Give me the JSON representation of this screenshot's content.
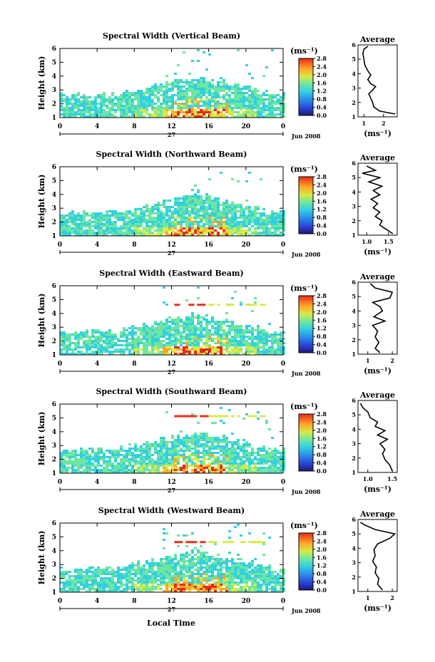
{
  "page": {
    "x_axis_label": "Local Time",
    "date_label": "Jun 2008",
    "day_label": "27"
  },
  "chart_data": [
    {
      "type": "heatmap",
      "title": "Spectral Width (Vertical Beam)",
      "ylabel": "Height (km)",
      "xlabel": "Local Time",
      "x_ticks": [
        "0",
        "4",
        "8",
        "12",
        "16",
        "20",
        "0"
      ],
      "y_ticks": [
        "1",
        "2",
        "3",
        "4",
        "5",
        "6"
      ],
      "xlim": [
        0,
        24
      ],
      "ylim": [
        1,
        6
      ],
      "colorbar_unit": "(ms⁻¹)",
      "colorbar_ticks": [
        "0.0",
        "0.4",
        "0.8",
        "1.2",
        "1.6",
        "2.0",
        "2.4",
        "2.8"
      ],
      "profile": {
        "title": "Average",
        "xlabel": "(ms⁻¹)",
        "x_ticks": [
          "1",
          "2"
        ],
        "xlim": [
          0.7,
          2.7
        ],
        "points": [
          [
            2.6,
            1.2
          ],
          [
            1.8,
            1.4
          ],
          [
            1.5,
            1.7
          ],
          [
            1.45,
            2.0
          ],
          [
            1.35,
            2.3
          ],
          [
            1.25,
            2.6
          ],
          [
            1.4,
            2.8
          ],
          [
            1.6,
            3.1
          ],
          [
            1.35,
            3.3
          ],
          [
            1.2,
            3.6
          ],
          [
            1.35,
            3.9
          ],
          [
            1.2,
            4.2
          ],
          [
            1.05,
            4.6
          ],
          [
            1.0,
            5.0
          ],
          [
            0.95,
            5.4
          ],
          [
            1.0,
            5.7
          ],
          [
            1.2,
            5.9
          ]
        ]
      }
    },
    {
      "type": "heatmap",
      "title": "Spectral Width (Northward Beam)",
      "ylabel": "Height (km)",
      "xlabel": "Local Time",
      "x_ticks": [
        "0",
        "4",
        "8",
        "12",
        "16",
        "20",
        "0"
      ],
      "y_ticks": [
        "1",
        "2",
        "3",
        "4",
        "5",
        "6"
      ],
      "xlim": [
        0,
        24
      ],
      "ylim": [
        1,
        6
      ],
      "colorbar_unit": "(ms⁻¹)",
      "colorbar_ticks": [
        "0.0",
        "0.4",
        "0.8",
        "1.2",
        "1.6",
        "2.0",
        "2.4",
        "2.8"
      ],
      "profile": {
        "title": "Average",
        "xlabel": "(ms⁻¹)",
        "x_ticks": [
          "1.0",
          "1.5"
        ],
        "xlim": [
          0.8,
          1.7
        ],
        "points": [
          [
            1.6,
            1.1
          ],
          [
            1.45,
            1.4
          ],
          [
            1.3,
            1.7
          ],
          [
            1.35,
            2.0
          ],
          [
            1.2,
            2.3
          ],
          [
            1.3,
            2.6
          ],
          [
            1.15,
            2.9
          ],
          [
            1.25,
            3.2
          ],
          [
            1.1,
            3.5
          ],
          [
            1.3,
            3.8
          ],
          [
            1.15,
            4.1
          ],
          [
            1.35,
            4.4
          ],
          [
            1.05,
            4.7
          ],
          [
            1.3,
            5.0
          ],
          [
            0.9,
            5.3
          ],
          [
            1.2,
            5.5
          ],
          [
            1.0,
            5.8
          ]
        ]
      }
    },
    {
      "type": "heatmap",
      "title": "Spectral Width (Eastward Beam)",
      "ylabel": "Height (km)",
      "xlabel": "Local Time",
      "x_ticks": [
        "0",
        "4",
        "8",
        "12",
        "16",
        "20",
        "0"
      ],
      "y_ticks": [
        "1",
        "2",
        "3",
        "4",
        "5",
        "6"
      ],
      "xlim": [
        0,
        24
      ],
      "ylim": [
        1,
        6
      ],
      "colorbar_unit": "(ms⁻¹)",
      "colorbar_ticks": [
        "0.0",
        "0.4",
        "0.8",
        "1.2",
        "1.6",
        "2.0",
        "2.4",
        "2.8"
      ],
      "profile": {
        "title": "Average",
        "xlabel": "(ms⁻¹)",
        "x_ticks": [
          "1",
          "2"
        ],
        "xlim": [
          0.6,
          2.2
        ],
        "points": [
          [
            1.5,
            1.1
          ],
          [
            1.3,
            1.4
          ],
          [
            1.45,
            1.8
          ],
          [
            1.3,
            2.2
          ],
          [
            1.4,
            2.6
          ],
          [
            1.2,
            3.0
          ],
          [
            1.7,
            3.3
          ],
          [
            1.25,
            3.6
          ],
          [
            1.6,
            4.0
          ],
          [
            1.5,
            4.3
          ],
          [
            1.2,
            4.6
          ],
          [
            1.9,
            4.9
          ],
          [
            2.0,
            5.3
          ],
          [
            1.3,
            5.6
          ],
          [
            1.1,
            5.9
          ]
        ]
      }
    },
    {
      "type": "heatmap",
      "title": "Spectral Width (Southward Beam)",
      "ylabel": "Height (km)",
      "xlabel": "Local Time",
      "x_ticks": [
        "0",
        "4",
        "8",
        "12",
        "16",
        "20",
        "0"
      ],
      "y_ticks": [
        "1",
        "2",
        "3",
        "4",
        "5",
        "6"
      ],
      "xlim": [
        0,
        24
      ],
      "ylim": [
        1,
        6
      ],
      "colorbar_unit": "(ms⁻¹)",
      "colorbar_ticks": [
        "0.0",
        "0.4",
        "0.8",
        "1.2",
        "1.6",
        "2.0",
        "2.4",
        "2.8"
      ],
      "profile": {
        "title": "Average",
        "xlabel": "(ms⁻¹)",
        "x_ticks": [
          "1.0",
          "1.5"
        ],
        "xlim": [
          0.8,
          1.6
        ],
        "points": [
          [
            1.5,
            1.1
          ],
          [
            1.45,
            1.5
          ],
          [
            1.35,
            1.9
          ],
          [
            1.3,
            2.3
          ],
          [
            1.35,
            2.6
          ],
          [
            1.25,
            3.0
          ],
          [
            1.4,
            3.3
          ],
          [
            1.2,
            3.6
          ],
          [
            1.35,
            3.9
          ],
          [
            1.15,
            4.2
          ],
          [
            1.2,
            4.5
          ],
          [
            1.05,
            4.8
          ],
          [
            1.0,
            5.2
          ],
          [
            0.9,
            5.5
          ],
          [
            0.85,
            5.8
          ]
        ]
      }
    },
    {
      "type": "heatmap",
      "title": "Spectral Width (Westward Beam)",
      "ylabel": "Height (km)",
      "xlabel": "Local Time",
      "x_ticks": [
        "0",
        "4",
        "8",
        "12",
        "16",
        "20",
        "0"
      ],
      "y_ticks": [
        "1",
        "2",
        "3",
        "4",
        "5",
        "6"
      ],
      "xlim": [
        0,
        24
      ],
      "ylim": [
        1,
        6
      ],
      "colorbar_unit": "(ms⁻¹)",
      "colorbar_ticks": [
        "0.0",
        "0.4",
        "0.8",
        "1.2",
        "1.6",
        "2.0",
        "2.4",
        "2.8"
      ],
      "profile": {
        "title": "Average",
        "xlabel": "(ms⁻¹)",
        "x_ticks": [
          "1",
          "2"
        ],
        "xlim": [
          0.6,
          2.2
        ],
        "points": [
          [
            1.6,
            1.1
          ],
          [
            1.4,
            1.5
          ],
          [
            1.45,
            1.9
          ],
          [
            1.3,
            2.3
          ],
          [
            1.35,
            2.7
          ],
          [
            1.2,
            3.1
          ],
          [
            1.3,
            3.5
          ],
          [
            1.25,
            3.9
          ],
          [
            1.4,
            4.3
          ],
          [
            1.9,
            4.7
          ],
          [
            2.1,
            5.0
          ],
          [
            1.3,
            5.3
          ],
          [
            0.9,
            5.6
          ],
          [
            0.7,
            5.8
          ]
        ]
      }
    }
  ]
}
